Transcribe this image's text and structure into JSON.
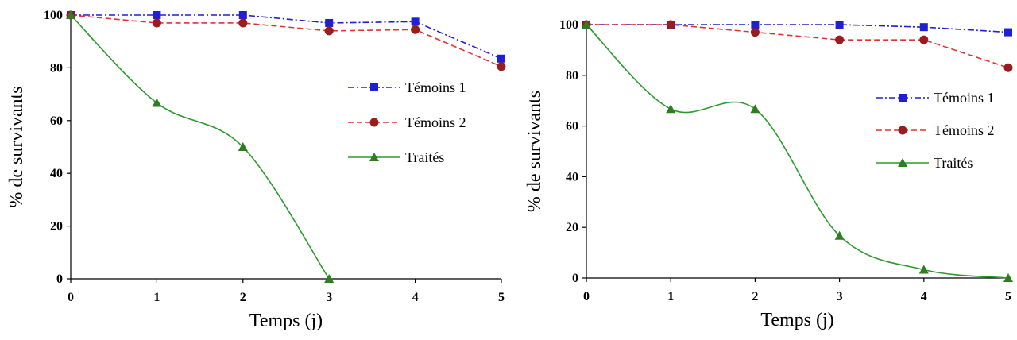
{
  "chart_data": [
    {
      "type": "line",
      "xlabel": "Temps (j)",
      "ylabel": "% de survivants",
      "x": [
        0,
        1,
        2,
        3,
        4,
        5
      ],
      "xticks": [
        "0",
        "1",
        "2",
        "3",
        "4",
        "5"
      ],
      "yticks": [
        "0",
        "20",
        "40",
        "60",
        "80",
        "100"
      ],
      "ylim": [
        0,
        100
      ],
      "xlim": [
        0,
        5
      ],
      "grid": false,
      "legend_position": "right-middle",
      "series": [
        {
          "name": "Témoins 1",
          "values": [
            100,
            100,
            100,
            97,
            97.5,
            83.5
          ],
          "color": "#1f1fd6",
          "marker": "square",
          "dash": "dash-dot"
        },
        {
          "name": "Témoins 2",
          "values": [
            100,
            97,
            97,
            94,
            94.5,
            80.5
          ],
          "color": "#e53030",
          "marker": "circle",
          "marker_color": "#9b1c1c",
          "dash": "dashed"
        },
        {
          "name": "Traités",
          "values": [
            100,
            66.7,
            50,
            0,
            null,
            null
          ],
          "color": "#2c9a2c",
          "marker": "triangle",
          "marker_color": "#2e7d1e",
          "dash": "solid"
        }
      ]
    },
    {
      "type": "line",
      "xlabel": "Temps (j)",
      "ylabel": "% de survivants",
      "x": [
        0,
        1,
        2,
        3,
        4,
        5
      ],
      "xticks": [
        "0",
        "1",
        "2",
        "3",
        "4",
        "5"
      ],
      "yticks": [
        "0",
        "20",
        "40",
        "60",
        "80",
        "100"
      ],
      "ylim": [
        0,
        100
      ],
      "xlim": [
        0,
        5
      ],
      "grid": false,
      "legend_position": "right-middle",
      "series": [
        {
          "name": "Témoins 1",
          "values": [
            100,
            100,
            100,
            100,
            99,
            97
          ],
          "color": "#1f1fd6",
          "marker": "square",
          "dash": "dash-dot"
        },
        {
          "name": "Témoins 2",
          "values": [
            100,
            100,
            97,
            94,
            94,
            83
          ],
          "color": "#e53030",
          "marker": "circle",
          "marker_color": "#9b1c1c",
          "dash": "dashed"
        },
        {
          "name": "Traités",
          "values": [
            100,
            66.7,
            66.7,
            16.7,
            3.3,
            0
          ],
          "color": "#2c9a2c",
          "marker": "triangle",
          "marker_color": "#2e7d1e",
          "dash": "solid"
        }
      ]
    }
  ]
}
